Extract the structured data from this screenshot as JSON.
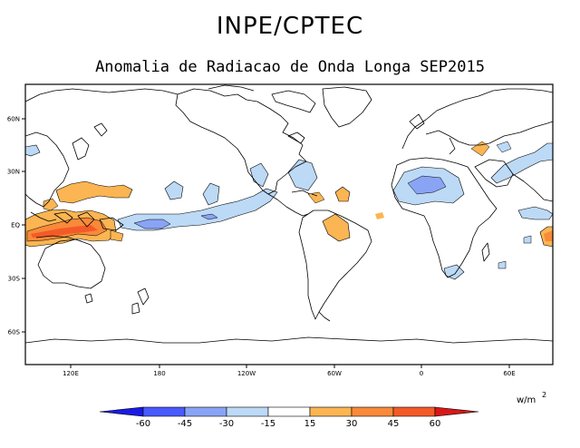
{
  "header": {
    "title": "INPE/CPTEC",
    "subtitle": "Anomalia de Radiacao de Onda Longa SEP2015"
  },
  "map": {
    "lat_ticks": [
      "60N",
      "30N",
      "EQ",
      "30S",
      "60S"
    ],
    "lon_ticks": [
      "120E",
      "180",
      "120W",
      "60W",
      "0",
      "60E"
    ]
  },
  "legend": {
    "unit_base": "w/m",
    "unit_exp": "2",
    "labels": [
      "-60",
      "-45",
      "-30",
      "-15",
      "15",
      "30",
      "45",
      "60"
    ],
    "colors": [
      "#1a1ae6",
      "#4a5aff",
      "#8aa4f5",
      "#bcd9f6",
      "#ffffff",
      "#fbb552",
      "#f88a3a",
      "#f45a28",
      "#d81818"
    ]
  }
}
